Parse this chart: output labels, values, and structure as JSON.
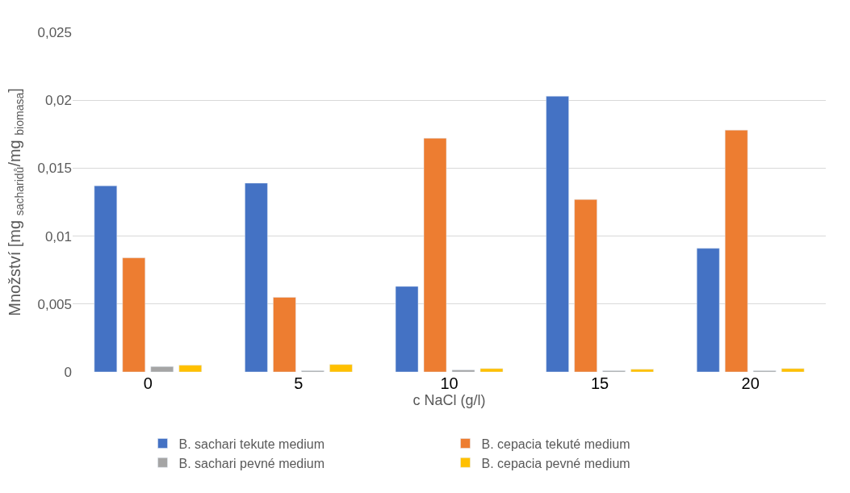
{
  "chart_data": {
    "type": "bar",
    "xlabel": "c NaCl (g/l)",
    "ylabel": "Množství [mg $_{sacharidů}$/mg $_{biomasa}$]",
    "categories": [
      "0",
      "5",
      "10",
      "15",
      "20"
    ],
    "series": [
      {
        "name": "B. sachari tekute medium",
        "color": "#4472c4",
        "values": [
          0.0137,
          0.0139,
          0.0063,
          0.0203,
          0.0091
        ]
      },
      {
        "name": "B. cepacia tekuté medium",
        "color": "#ed7d31",
        "values": [
          0.0084,
          0.0055,
          0.0172,
          0.0127,
          0.0178
        ]
      },
      {
        "name": "B. sachari pevné medium",
        "color": "#a5a5a5",
        "values": [
          0.0004,
          0.0001,
          0.00015,
          0.0001,
          0.0001
        ]
      },
      {
        "name": "B. cepacia pevné medium",
        "color": "#ffc000",
        "values": [
          0.0005,
          0.00055,
          0.00025,
          0.0002,
          0.00025
        ]
      }
    ],
    "ylim": [
      0,
      0.025
    ],
    "yticks": [
      {
        "value": 0,
        "label": "0"
      },
      {
        "value": 0.005,
        "label": "0,005"
      },
      {
        "value": 0.01,
        "label": "0,01"
      },
      {
        "value": 0.015,
        "label": "0,015"
      },
      {
        "value": 0.02,
        "label": "0,02"
      },
      {
        "value": 0.025,
        "label": "0,025"
      }
    ],
    "grid": "y",
    "legend": "bottom"
  }
}
